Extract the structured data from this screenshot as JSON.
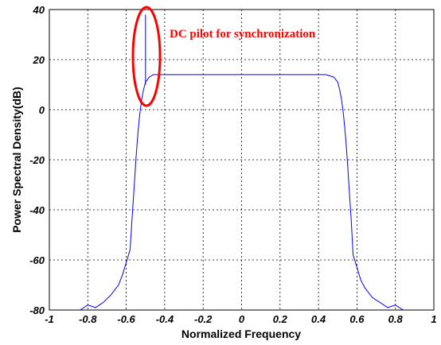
{
  "chart_data": {
    "type": "line",
    "xlabel": "Normalized Frequency",
    "ylabel": "Power Spectral Density(dB)",
    "xlim": [
      -1,
      1
    ],
    "ylim": [
      -80,
      40
    ],
    "grid": true,
    "xticks": [
      -1,
      -0.8,
      -0.6,
      -0.4,
      -0.2,
      0,
      0.2,
      0.4,
      0.6,
      0.8,
      1
    ],
    "xtick_labels": [
      "-1",
      "-0.8",
      "-0.6",
      "-0.4",
      "-0.2",
      "0",
      "0.2",
      "0.4",
      "0.6",
      "0.8",
      "1"
    ],
    "yticks": [
      -80,
      -60,
      -40,
      -20,
      0,
      20,
      40
    ],
    "ytick_labels": [
      "-80",
      "-60",
      "-40",
      "-20",
      "0",
      "20",
      "40"
    ],
    "line_color": "#0000ff",
    "annotation": {
      "text": "DC pilot for synchronization",
      "color": "#ff0000",
      "x": -0.49,
      "y": 40
    },
    "series": [
      {
        "values_x": [
          -0.84,
          -0.8,
          -0.76,
          -0.72,
          -0.68,
          -0.64,
          -0.62,
          -0.6,
          -0.58,
          -0.57,
          -0.56,
          -0.55,
          -0.54,
          -0.53,
          -0.52,
          -0.51,
          -0.5,
          -0.49,
          -0.48,
          -0.47,
          -0.46,
          -0.45,
          -0.44,
          -0.4,
          -0.3,
          -0.2,
          -0.1,
          0.0,
          0.1,
          0.2,
          0.3,
          0.4,
          0.44,
          0.46,
          0.48,
          0.49,
          0.5,
          0.51,
          0.52,
          0.53,
          0.54,
          0.55,
          0.56,
          0.57,
          0.58,
          0.6,
          0.62,
          0.64,
          0.68,
          0.72,
          0.76,
          0.8,
          0.84
        ],
        "values_y": [
          -80,
          -78,
          -79,
          -77,
          -74,
          -70,
          -66,
          -61,
          -56,
          -44,
          -32,
          -20,
          -10,
          -2,
          4,
          8,
          11,
          12,
          13,
          13.5,
          14,
          14,
          14,
          14,
          14,
          14,
          14,
          14,
          14,
          14,
          14,
          14,
          14,
          13.5,
          13,
          12,
          11,
          8,
          4,
          -2,
          -10,
          -20,
          -32,
          -44,
          -58,
          -63,
          -68,
          -71,
          -75,
          -77,
          -79,
          -78,
          -80
        ]
      },
      {
        "values_x": [
          -0.5,
          -0.5
        ],
        "values_y": [
          10,
          38
        ]
      }
    ]
  }
}
